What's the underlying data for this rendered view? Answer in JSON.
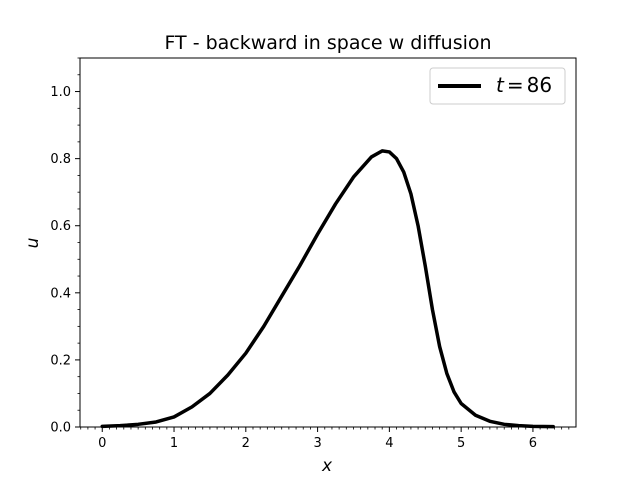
{
  "chart_data": {
    "type": "line",
    "title": "FT - backward in space w diffusion",
    "xlabel": "x",
    "ylabel": "u",
    "xlim": [
      -0.31,
      6.6
    ],
    "ylim": [
      0.0,
      1.1
    ],
    "xticks": [
      0,
      1,
      2,
      3,
      4,
      5,
      6
    ],
    "yticks": [
      0.0,
      0.2,
      0.4,
      0.6,
      0.8,
      1.0
    ],
    "tick_labels_x": [
      "0",
      "1",
      "2",
      "3",
      "4",
      "5",
      "6"
    ],
    "tick_labels_y": [
      "0.0",
      "0.2",
      "0.4",
      "0.6",
      "0.8",
      "1.0"
    ],
    "minor_ticks": true,
    "grid": false,
    "legend_position": "top-right",
    "legend": {
      "t_symbol": "t",
      "equals": "=",
      "value": "86"
    },
    "series": [
      {
        "color": "#000000",
        "x": [
          0.0,
          0.25,
          0.5,
          0.75,
          1.0,
          1.25,
          1.5,
          1.75,
          2.0,
          2.25,
          2.5,
          2.75,
          3.0,
          3.25,
          3.5,
          3.75,
          3.9,
          4.0,
          4.1,
          4.2,
          4.3,
          4.4,
          4.5,
          4.6,
          4.7,
          4.8,
          4.9,
          5.0,
          5.2,
          5.4,
          5.6,
          5.8,
          6.0,
          6.283
        ],
        "y": [
          0.002,
          0.004,
          0.008,
          0.015,
          0.03,
          0.06,
          0.1,
          0.155,
          0.22,
          0.3,
          0.39,
          0.48,
          0.575,
          0.665,
          0.745,
          0.805,
          0.823,
          0.82,
          0.8,
          0.76,
          0.695,
          0.6,
          0.48,
          0.35,
          0.24,
          0.16,
          0.105,
          0.07,
          0.035,
          0.017,
          0.008,
          0.004,
          0.002,
          0.001
        ]
      }
    ]
  }
}
